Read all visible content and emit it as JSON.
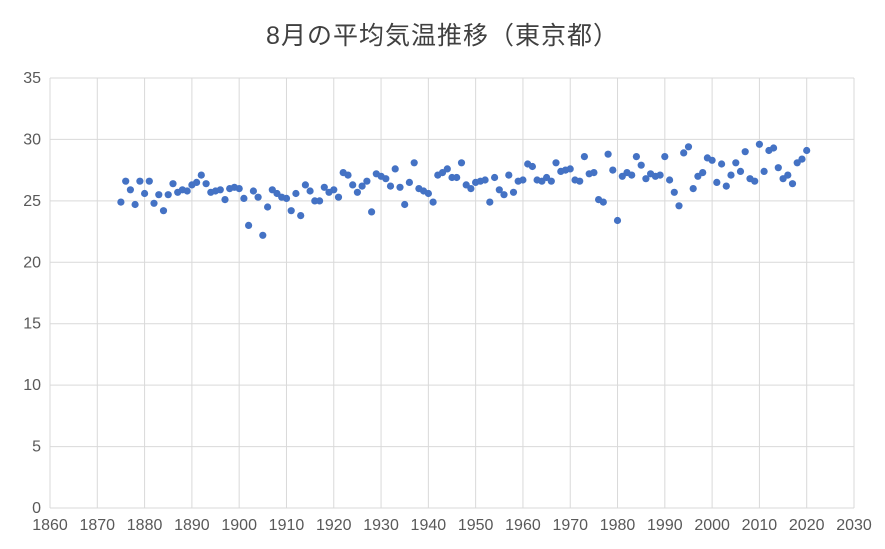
{
  "chart_data": {
    "type": "scatter",
    "title": "8月の平均気温推移（東京都）",
    "xlabel": "",
    "ylabel": "",
    "x_range": [
      1860,
      2030
    ],
    "y_range": [
      0,
      35
    ],
    "x_tick_step": 10,
    "y_tick_step": 5,
    "x_ticks": [
      1860,
      1870,
      1880,
      1890,
      1900,
      1910,
      1920,
      1930,
      1940,
      1950,
      1960,
      1970,
      1980,
      1990,
      2000,
      2010,
      2020,
      2030
    ],
    "y_ticks": [
      0,
      5,
      10,
      15,
      20,
      25,
      30,
      35
    ],
    "grid": true,
    "legend_position": "none",
    "series_name": "8月平均気温",
    "points": [
      [
        1875,
        24.9
      ],
      [
        1876,
        26.6
      ],
      [
        1877,
        25.9
      ],
      [
        1878,
        24.7
      ],
      [
        1879,
        26.6
      ],
      [
        1880,
        25.6
      ],
      [
        1881,
        26.6
      ],
      [
        1882,
        24.8
      ],
      [
        1883,
        25.5
      ],
      [
        1884,
        24.2
      ],
      [
        1885,
        25.5
      ],
      [
        1886,
        26.4
      ],
      [
        1887,
        25.7
      ],
      [
        1888,
        25.9
      ],
      [
        1889,
        25.8
      ],
      [
        1890,
        26.3
      ],
      [
        1891,
        26.5
      ],
      [
        1892,
        27.1
      ],
      [
        1893,
        26.4
      ],
      [
        1894,
        25.7
      ],
      [
        1895,
        25.8
      ],
      [
        1896,
        25.9
      ],
      [
        1897,
        25.1
      ],
      [
        1898,
        26.0
      ],
      [
        1899,
        26.1
      ],
      [
        1900,
        26.0
      ],
      [
        1901,
        25.2
      ],
      [
        1902,
        23.0
      ],
      [
        1903,
        25.8
      ],
      [
        1904,
        25.3
      ],
      [
        1905,
        22.2
      ],
      [
        1906,
        24.5
      ],
      [
        1907,
        25.9
      ],
      [
        1908,
        25.6
      ],
      [
        1909,
        25.3
      ],
      [
        1910,
        25.2
      ],
      [
        1911,
        24.2
      ],
      [
        1912,
        25.6
      ],
      [
        1913,
        23.8
      ],
      [
        1914,
        26.3
      ],
      [
        1915,
        25.8
      ],
      [
        1916,
        25.0
      ],
      [
        1917,
        25.0
      ],
      [
        1918,
        26.1
      ],
      [
        1919,
        25.7
      ],
      [
        1920,
        25.9
      ],
      [
        1921,
        25.3
      ],
      [
        1922,
        27.3
      ],
      [
        1923,
        27.1
      ],
      [
        1924,
        26.3
      ],
      [
        1925,
        25.7
      ],
      [
        1926,
        26.2
      ],
      [
        1927,
        26.6
      ],
      [
        1928,
        24.1
      ],
      [
        1929,
        27.2
      ],
      [
        1930,
        27.0
      ],
      [
        1931,
        26.8
      ],
      [
        1932,
        26.2
      ],
      [
        1933,
        27.6
      ],
      [
        1934,
        26.1
      ],
      [
        1935,
        24.7
      ],
      [
        1936,
        26.5
      ],
      [
        1937,
        28.1
      ],
      [
        1938,
        26.0
      ],
      [
        1939,
        25.8
      ],
      [
        1940,
        25.6
      ],
      [
        1941,
        24.9
      ],
      [
        1942,
        27.1
      ],
      [
        1943,
        27.3
      ],
      [
        1944,
        27.6
      ],
      [
        1945,
        26.9
      ],
      [
        1946,
        26.9
      ],
      [
        1947,
        28.1
      ],
      [
        1948,
        26.3
      ],
      [
        1949,
        26.0
      ],
      [
        1950,
        26.5
      ],
      [
        1951,
        26.6
      ],
      [
        1952,
        26.7
      ],
      [
        1953,
        24.9
      ],
      [
        1954,
        26.9
      ],
      [
        1955,
        25.9
      ],
      [
        1956,
        25.5
      ],
      [
        1957,
        27.1
      ],
      [
        1958,
        25.7
      ],
      [
        1959,
        26.6
      ],
      [
        1960,
        26.7
      ],
      [
        1961,
        28.0
      ],
      [
        1962,
        27.8
      ],
      [
        1963,
        26.7
      ],
      [
        1964,
        26.6
      ],
      [
        1965,
        26.9
      ],
      [
        1966,
        26.6
      ],
      [
        1967,
        28.1
      ],
      [
        1968,
        27.4
      ],
      [
        1969,
        27.5
      ],
      [
        1970,
        27.6
      ],
      [
        1971,
        26.7
      ],
      [
        1972,
        26.6
      ],
      [
        1973,
        28.6
      ],
      [
        1974,
        27.2
      ],
      [
        1975,
        27.3
      ],
      [
        1976,
        25.1
      ],
      [
        1977,
        24.9
      ],
      [
        1978,
        28.8
      ],
      [
        1979,
        27.5
      ],
      [
        1980,
        23.4
      ],
      [
        1981,
        27.0
      ],
      [
        1982,
        27.3
      ],
      [
        1983,
        27.1
      ],
      [
        1984,
        28.6
      ],
      [
        1985,
        27.9
      ],
      [
        1986,
        26.8
      ],
      [
        1987,
        27.2
      ],
      [
        1988,
        27.0
      ],
      [
        1989,
        27.1
      ],
      [
        1990,
        28.6
      ],
      [
        1991,
        26.7
      ],
      [
        1992,
        25.7
      ],
      [
        1993,
        24.6
      ],
      [
        1994,
        28.9
      ],
      [
        1995,
        29.4
      ],
      [
        1996,
        26.0
      ],
      [
        1997,
        27.0
      ],
      [
        1998,
        27.3
      ],
      [
        1999,
        28.5
      ],
      [
        2000,
        28.3
      ],
      [
        2001,
        26.5
      ],
      [
        2002,
        28.0
      ],
      [
        2003,
        26.2
      ],
      [
        2004,
        27.1
      ],
      [
        2005,
        28.1
      ],
      [
        2006,
        27.4
      ],
      [
        2007,
        29.0
      ],
      [
        2008,
        26.8
      ],
      [
        2009,
        26.6
      ],
      [
        2010,
        29.6
      ],
      [
        2011,
        27.4
      ],
      [
        2012,
        29.1
      ],
      [
        2013,
        29.3
      ],
      [
        2014,
        27.7
      ],
      [
        2015,
        26.8
      ],
      [
        2016,
        27.1
      ],
      [
        2017,
        26.4
      ],
      [
        2018,
        28.1
      ],
      [
        2019,
        28.4
      ],
      [
        2020,
        29.1
      ]
    ],
    "colors": {
      "point": "#4472C4",
      "grid": "#D9D9D9",
      "tick_label": "#595959",
      "title": "#404040",
      "background": "#FFFFFF"
    }
  }
}
